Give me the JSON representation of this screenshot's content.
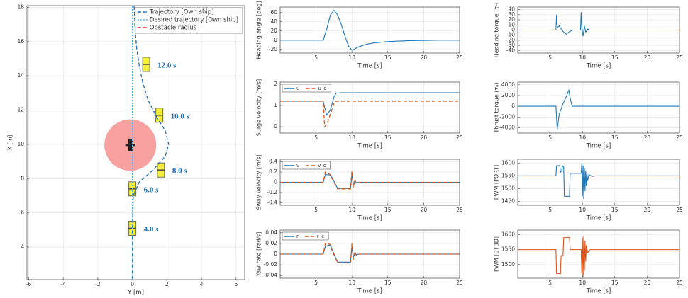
{
  "chart_data": [
    {
      "type": "line",
      "xlabel": "Y [m]",
      "ylabel": "X [m]",
      "xlim": [
        -6.1,
        6.5
      ],
      "ylim": [
        2.1,
        18.1
      ],
      "xticks": [
        -6,
        -4,
        -2,
        0,
        2,
        4,
        6
      ],
      "yticks": [
        4,
        6,
        8,
        10,
        12,
        14,
        16,
        18
      ],
      "grid": true,
      "legend": "upper right",
      "obstacle": {
        "name": "Obstacle radius",
        "color": "#f7a1a1",
        "legend_color": "#e0302a",
        "center": [
          -0.12,
          9.96
        ],
        "radius": 1.5
      },
      "series": [
        {
          "name": "Trajectory [Own ship]",
          "color": "#1f6fb5",
          "style": "dashed",
          "x": [
            0,
            0,
            0.05,
            0.4,
            1.2,
            1.9,
            2.1,
            1.9,
            1.4,
            0.9,
            0.6,
            0.4,
            0.25,
            0.15,
            0.1
          ],
          "values": [
            2.1,
            5,
            7,
            7.8,
            8.5,
            9.3,
            10,
            10.8,
            11.6,
            12.6,
            13.6,
            14.6,
            15.6,
            16.8,
            18.1
          ]
        },
        {
          "name": "Desired trajectory [Own ship]",
          "color": "#5ab4e5",
          "style": "dotted",
          "x": [
            0,
            0
          ],
          "values": [
            2.1,
            18.1
          ]
        }
      ],
      "annotations": [
        {
          "text": "4.0 s",
          "x": 0,
          "y": 5.1
        },
        {
          "text": "6.0 s",
          "x": 0,
          "y": 7.4
        },
        {
          "text": "8.0 s",
          "x": 1.65,
          "y": 8.5
        },
        {
          "text": "10.0 s",
          "x": 1.56,
          "y": 11.7
        },
        {
          "text": "12.0 s",
          "x": 0.8,
          "y": 14.67
        }
      ]
    },
    {
      "type": "line",
      "xlabel": "Time [s]",
      "ylabel": "Heading angle [deg]",
      "xlim": [
        0,
        25
      ],
      "ylim": [
        -28,
        72
      ],
      "xticks": [
        5,
        10,
        15,
        20,
        25
      ],
      "yticks": [
        -20,
        0,
        20,
        40,
        60
      ],
      "grid": true,
      "x": [
        0,
        6,
        6.5,
        7,
        7.5,
        8,
        8.5,
        9,
        9.5,
        10,
        10.5,
        11,
        12,
        13,
        15,
        18,
        22,
        25
      ],
      "series": [
        {
          "color": "#1f77b4",
          "style": "solid",
          "values": [
            0,
            0,
            25,
            55,
            65,
            55,
            35,
            10,
            -12,
            -22,
            -18,
            -14,
            -9,
            -6,
            -3,
            -1,
            0,
            0
          ]
        }
      ]
    },
    {
      "type": "line",
      "xlabel": "Time [s]",
      "ylabel": "Surge velocity [m/s]",
      "xlim": [
        0,
        25
      ],
      "ylim": [
        -0.3,
        2.1
      ],
      "xticks": [
        5,
        10,
        15,
        20,
        25
      ],
      "yticks": [
        0,
        1,
        2
      ],
      "grid": true,
      "legend": "upper left",
      "x": [
        0,
        6,
        6.2,
        6.5,
        7,
        7.5,
        7.8,
        8.5,
        25
      ],
      "series": [
        {
          "name": "u",
          "color": "#1f77b4",
          "style": "solid",
          "values": [
            1.2,
            1.2,
            0.9,
            0.55,
            0.8,
            1.4,
            1.58,
            1.6,
            1.6
          ]
        },
        {
          "name": "u_c",
          "color": "#d95319",
          "style": "dashed",
          "values": [
            1.2,
            1.2,
            0,
            0.1,
            0.6,
            1.1,
            1.2,
            1.2,
            1.2
          ]
        }
      ]
    },
    {
      "type": "line",
      "xlabel": "Time [s]",
      "ylabel": "Sway velocity [m/s]",
      "xlim": [
        0,
        25
      ],
      "ylim": [
        -0.45,
        0.45
      ],
      "xticks": [
        5,
        10,
        15,
        20,
        25
      ],
      "yticks": [
        -0.4,
        -0.2,
        0,
        0.2,
        0.4
      ],
      "grid": true,
      "legend": "upper left",
      "x": [
        0,
        6,
        6.3,
        7,
        7.2,
        8,
        9.8,
        10,
        10.2,
        10.4,
        10.6,
        11,
        25
      ],
      "series": [
        {
          "name": "v",
          "color": "#1f77b4",
          "style": "solid",
          "values": [
            0,
            0,
            0.15,
            0.14,
            0.1,
            -0.12,
            -0.12,
            0.15,
            -0.05,
            0.03,
            -0.01,
            0,
            0
          ]
        },
        {
          "name": "v_c",
          "color": "#d95319",
          "style": "dashed",
          "values": [
            0,
            0,
            0.2,
            0.15,
            0.08,
            -0.13,
            -0.13,
            0.22,
            -0.1,
            0.05,
            -0.02,
            0,
            0
          ]
        }
      ]
    },
    {
      "type": "line",
      "xlabel": "Time [s]",
      "ylabel": "Yaw rate [rad/s]",
      "xlim": [
        0,
        25
      ],
      "ylim": [
        -0.045,
        0.045
      ],
      "xticks": [
        5,
        10,
        15,
        20,
        25
      ],
      "yticks": [
        -0.04,
        -0.02,
        0,
        0.02,
        0.04
      ],
      "grid": true,
      "legend": "upper left",
      "x": [
        0,
        6,
        6.3,
        7,
        7.2,
        8,
        9.8,
        10,
        10.2,
        10.4,
        10.6,
        11,
        25
      ],
      "series": [
        {
          "name": "r",
          "color": "#1f77b4",
          "style": "solid",
          "values": [
            0,
            0,
            0.015,
            0.017,
            0.01,
            -0.015,
            -0.015,
            0.015,
            -0.006,
            0.003,
            -0.001,
            0,
            0
          ]
        },
        {
          "name": "r_c",
          "color": "#d95319",
          "style": "dashed",
          "values": [
            0,
            0,
            0.02,
            0.018,
            0.008,
            -0.016,
            -0.016,
            0.02,
            -0.01,
            0.005,
            -0.002,
            0,
            0
          ]
        }
      ]
    },
    {
      "type": "line",
      "xlabel": "Time [s]",
      "ylabel": "Heading torque (τᵣ)",
      "xlim": [
        0,
        25
      ],
      "ylim": [
        -45,
        45
      ],
      "xticks": [
        5,
        10,
        15,
        20,
        25
      ],
      "yticks": [
        -40,
        -30,
        -20,
        -10,
        0,
        10,
        20,
        30,
        40
      ],
      "grid": true,
      "x": [
        0,
        5.9,
        6,
        6.1,
        6.4,
        7,
        7.5,
        8,
        8.5,
        9.7,
        9.8,
        9.9,
        10.1,
        10.3,
        10.5,
        10.8,
        11.2,
        25
      ],
      "series": [
        {
          "color": "#1f77b4",
          "style": "solid",
          "values": [
            0,
            0,
            30,
            5,
            8,
            -3,
            -8,
            -3,
            0,
            0,
            35,
            5,
            -12,
            8,
            -4,
            2,
            0,
            0
          ]
        }
      ]
    },
    {
      "type": "line",
      "xlabel": "Time [s]",
      "ylabel": "Thrust torque (τᵤ)",
      "xlim": [
        0,
        25
      ],
      "ylim": [
        -5000,
        4500
      ],
      "xticks": [
        5,
        10,
        15,
        20,
        25
      ],
      "yticks": [
        -4000,
        -2000,
        0,
        2000,
        4000
      ],
      "grid": true,
      "x": [
        0,
        5.9,
        6.1,
        6.4,
        7,
        7.5,
        7.9,
        8.1,
        8.4,
        25
      ],
      "series": [
        {
          "color": "#1f77b4",
          "style": "solid",
          "values": [
            0,
            0,
            -4300,
            -1500,
            500,
            1800,
            3000,
            1500,
            0,
            0
          ]
        }
      ]
    },
    {
      "type": "line",
      "xlabel": "Time [s]",
      "ylabel": "PWM [PORT]",
      "xlim": [
        0,
        25
      ],
      "ylim": [
        1435,
        1615
      ],
      "xticks": [
        5,
        10,
        15,
        20,
        25
      ],
      "yticks": [
        1450,
        1500,
        1550,
        1600
      ],
      "grid": true,
      "x": [
        0,
        5.9,
        6.0,
        6.5,
        6.6,
        6.8,
        6.9,
        7.1,
        7.2,
        8.0,
        8.1,
        9.8,
        9.9,
        10.0,
        10.1,
        10.2,
        10.3,
        10.4,
        10.5,
        10.6,
        10.7,
        10.8,
        11,
        11.5,
        12,
        25
      ],
      "series": [
        {
          "color": "#1f77b4",
          "style": "solid",
          "values": [
            1550,
            1550,
            1590,
            1590,
            1565,
            1570,
            1590,
            1585,
            1470,
            1470,
            1560,
            1560,
            1600,
            1470,
            1590,
            1460,
            1580,
            1490,
            1570,
            1510,
            1560,
            1530,
            1555,
            1548,
            1550,
            1550
          ]
        }
      ]
    },
    {
      "type": "line",
      "xlabel": "Time [s]",
      "ylabel": "PWM [STBD]",
      "xlim": [
        0,
        25
      ],
      "ylim": [
        1455,
        1615
      ],
      "xticks": [
        5,
        10,
        15,
        20,
        25
      ],
      "yticks": [
        1500,
        1550,
        1600
      ],
      "grid": true,
      "x": [
        0,
        5.9,
        6.0,
        6.6,
        6.7,
        7.0,
        7.1,
        8.0,
        8.1,
        9.8,
        9.9,
        10.0,
        10.1,
        10.2,
        10.3,
        10.4,
        10.5,
        10.6,
        10.8,
        11.2,
        25
      ],
      "series": [
        {
          "color": "#d95319",
          "style": "solid",
          "values": [
            1550,
            1550,
            1470,
            1470,
            1530,
            1530,
            1590,
            1590,
            1550,
            1550,
            1470,
            1590,
            1460,
            1595,
            1480,
            1580,
            1510,
            1565,
            1540,
            1550,
            1550
          ]
        }
      ]
    }
  ]
}
